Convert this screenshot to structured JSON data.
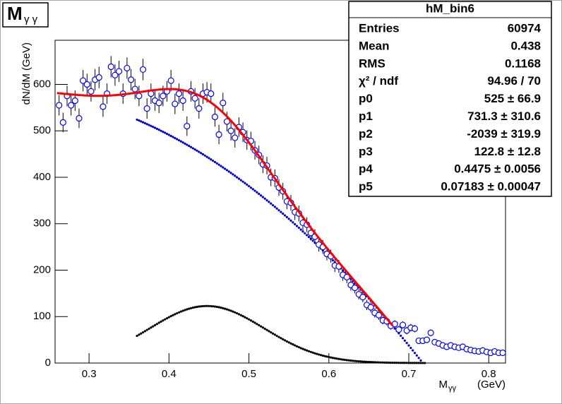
{
  "chart_data": {
    "type": "scatter",
    "title": {
      "main": "M",
      "sub": "γ γ"
    },
    "x_label": {
      "main": "M",
      "sub": "γγ",
      "unit": "(GeV)"
    },
    "y_label": "dN/dM (GeV)",
    "xlim": [
      0.2575,
      0.821
    ],
    "ylim": [
      0,
      695
    ],
    "xticks": [
      0.3,
      0.4,
      0.5,
      0.6,
      0.7,
      0.8
    ],
    "yticks": [
      0,
      100,
      200,
      300,
      400,
      500,
      600
    ],
    "color": "#0000ff",
    "x": [
      0.2625,
      0.2675,
      0.2725,
      0.2775,
      0.2825,
      0.2875,
      0.2925,
      0.2975,
      0.3025,
      0.3075,
      0.3125,
      0.3175,
      0.3225,
      0.3275,
      0.3325,
      0.3375,
      0.3425,
      0.3475,
      0.3525,
      0.3575,
      0.3625,
      0.3675,
      0.3725,
      0.3775,
      0.3825,
      0.3875,
      0.3925,
      0.3975,
      0.4025,
      0.4075,
      0.4125,
      0.4175,
      0.4225,
      0.4275,
      0.4325,
      0.4375,
      0.4425,
      0.4475,
      0.4525,
      0.4575,
      0.4625,
      0.4675,
      0.4725,
      0.4775,
      0.4825,
      0.4875,
      0.4925,
      0.4975,
      0.5025,
      0.5075,
      0.5125,
      0.5175,
      0.5225,
      0.5275,
      0.5325,
      0.5375,
      0.5425,
      0.5475,
      0.5525,
      0.5575,
      0.5625,
      0.5675,
      0.5725,
      0.5775,
      0.5825,
      0.5875,
      0.5925,
      0.5975,
      0.6025,
      0.6075,
      0.6125,
      0.6175,
      0.6225,
      0.6275,
      0.6325,
      0.6375,
      0.6425,
      0.6475,
      0.6525,
      0.6575,
      0.6625,
      0.6675,
      0.6725,
      0.6775,
      0.6825,
      0.6875,
      0.6925,
      0.6975,
      0.7025,
      0.7075,
      0.7125,
      0.7175,
      0.7225,
      0.7275,
      0.7325,
      0.7375,
      0.7425,
      0.7475,
      0.7525,
      0.7575,
      0.7625,
      0.7675,
      0.7725,
      0.7775,
      0.7825,
      0.7875,
      0.7925,
      0.7975,
      0.8025,
      0.8075,
      0.8125,
      0.8175
    ],
    "values": [
      555,
      518,
      575,
      555,
      565,
      527,
      608,
      600,
      585,
      610,
      615,
      552,
      580,
      638,
      620,
      628,
      580,
      635,
      610,
      590,
      575,
      632,
      548,
      580,
      565,
      560,
      575,
      585,
      608,
      558,
      580,
      565,
      510,
      585,
      570,
      548,
      580,
      583,
      580,
      530,
      492,
      560,
      520,
      500,
      485,
      508,
      497,
      480,
      478,
      458,
      448,
      428,
      425,
      400,
      398,
      378,
      370,
      348,
      345,
      325,
      322,
      302,
      298,
      280,
      272,
      255,
      250,
      235,
      230,
      210,
      208,
      190,
      185,
      168,
      162,
      148,
      142,
      125,
      120,
      108,
      103,
      92,
      90,
      80,
      84,
      72,
      82,
      70,
      76,
      74,
      48,
      48,
      50,
      65,
      45,
      42,
      38,
      35,
      38,
      35,
      33,
      35,
      30,
      28,
      26,
      25,
      27,
      24,
      22,
      25,
      22,
      22
    ],
    "errors": [
      22,
      21,
      22,
      22,
      22,
      21,
      23,
      23,
      22,
      23,
      23,
      22,
      22,
      23,
      23,
      23,
      22,
      23,
      23,
      22,
      22,
      23,
      22,
      22,
      22,
      22,
      22,
      22,
      23,
      22,
      22,
      22,
      21,
      22,
      22,
      22,
      22,
      22,
      22,
      21,
      21,
      22,
      21,
      21,
      21,
      21,
      21,
      21,
      20,
      20,
      20,
      19,
      19,
      19,
      19,
      18,
      18,
      17,
      17,
      17,
      17,
      16,
      16,
      16,
      16,
      15,
      15,
      14,
      14,
      14,
      14,
      13,
      13,
      12,
      12,
      11,
      11,
      11,
      11,
      10,
      10,
      9,
      9,
      8,
      8,
      8,
      8,
      8,
      8,
      8,
      6,
      6,
      6,
      7,
      6,
      6,
      5,
      5,
      5,
      5,
      5,
      5,
      5,
      5,
      5,
      5,
      5,
      5,
      5,
      5,
      5,
      5
    ],
    "fit": {
      "color": "#ff0000",
      "xlim": [
        0.26,
        0.68
      ]
    },
    "background": {
      "color": "#0000cc",
      "xlim": [
        0.36,
        0.715
      ]
    },
    "signal": {
      "color": "#000000",
      "xlim": [
        0.36,
        0.72
      ]
    },
    "stats": {
      "title": "hM_bin6",
      "rows": [
        {
          "label": "Entries",
          "value": 60974
        },
        {
          "label": "Mean",
          "value": 0.438
        },
        {
          "label": "RMS",
          "value": 0.1168
        },
        {
          "label": "χ² / ndf",
          "value": "94.96 / 70"
        },
        {
          "label": "p0",
          "value": "525 ± 66.9"
        },
        {
          "label": "p1",
          "value": "731.3 ± 310.6"
        },
        {
          "label": "p2",
          "value": "-2039 ± 319.9"
        },
        {
          "label": "p3",
          "value": "122.8 ± 12.8"
        },
        {
          "label": "p4",
          "value": "0.4475 ± 0.0056"
        },
        {
          "label": "p5",
          "value": "0.07183 ± 0.00047"
        }
      ]
    }
  }
}
